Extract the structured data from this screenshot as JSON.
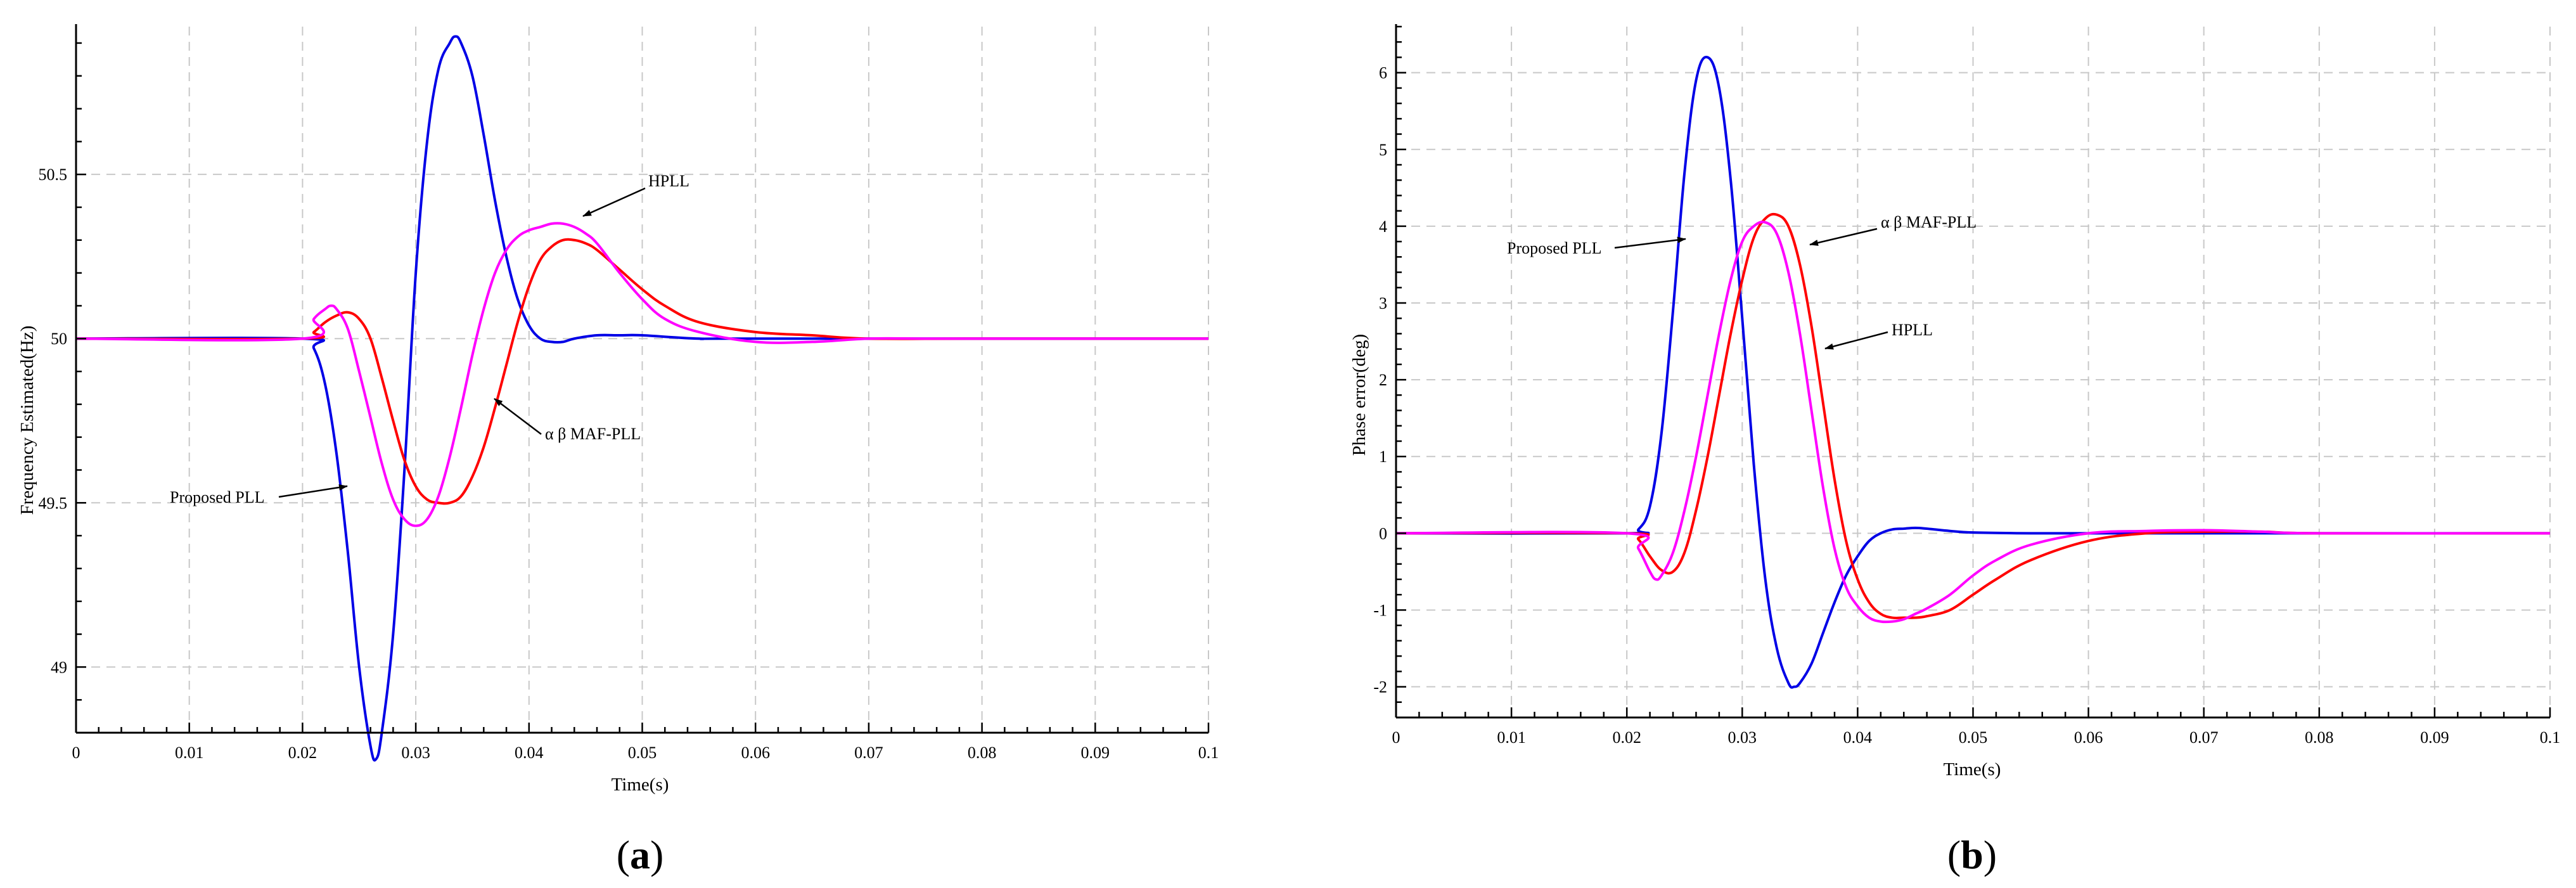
{
  "colors": {
    "proposed": "#0000e6",
    "maf": "#ff0000",
    "hpll": "#ff00ff",
    "grid": "#c8c8c8",
    "axis": "#000000"
  },
  "panels": [
    {
      "label_open": "(",
      "label_letter": "a",
      "label_close": ")"
    },
    {
      "label_open": "(",
      "label_letter": "b",
      "label_close": ")"
    }
  ],
  "chart_data": [
    {
      "type": "line",
      "xlabel": "Time(s)",
      "ylabel": "Frequency Estimated(Hz)",
      "xlim": [
        0,
        0.1
      ],
      "ylim": [
        48.8,
        50.95
      ],
      "x_ticks": [
        0,
        0.01,
        0.02,
        0.03,
        0.04,
        0.05,
        0.06,
        0.07,
        0.08,
        0.09,
        0.1
      ],
      "x_tick_labels": [
        "0",
        "0.01",
        "0.02",
        "0.03",
        "0.04",
        "0.05",
        "0.06",
        "0.07",
        "0.08",
        "0.09",
        "0.1"
      ],
      "y_ticks": [
        49,
        49.5,
        50,
        50.5
      ],
      "y_tick_labels": [
        "49",
        "49.5",
        "50",
        "50.5"
      ],
      "grid": true,
      "series": [
        {
          "name": "Proposed PLL",
          "color": "#0000e6",
          "x": [
            0,
            0.02,
            0.021,
            0.022,
            0.023,
            0.024,
            0.025,
            0.026,
            0.0265,
            0.027,
            0.028,
            0.029,
            0.03,
            0.031,
            0.032,
            0.033,
            0.0335,
            0.034,
            0.035,
            0.036,
            0.037,
            0.038,
            0.039,
            0.04,
            0.041,
            0.042,
            0.043,
            0.044,
            0.046,
            0.048,
            0.05,
            0.055,
            0.06,
            0.1
          ],
          "y": [
            50,
            50,
            49.97,
            49.86,
            49.65,
            49.35,
            49.0,
            48.76,
            48.72,
            48.8,
            49.1,
            49.6,
            50.2,
            50.6,
            50.82,
            50.9,
            50.92,
            50.9,
            50.8,
            50.62,
            50.42,
            50.25,
            50.12,
            50.04,
            50.0,
            49.99,
            49.99,
            50.0,
            50.01,
            50.01,
            50.01,
            50.0,
            50.0,
            50.0
          ]
        },
        {
          "name": "α β MAF-PLL",
          "color": "#ff0000",
          "x": [
            0,
            0.02,
            0.021,
            0.022,
            0.023,
            0.024,
            0.025,
            0.026,
            0.027,
            0.028,
            0.029,
            0.03,
            0.031,
            0.032,
            0.033,
            0.034,
            0.035,
            0.036,
            0.037,
            0.038,
            0.039,
            0.04,
            0.041,
            0.042,
            0.043,
            0.044,
            0.045,
            0.046,
            0.048,
            0.05,
            0.052,
            0.055,
            0.06,
            0.065,
            0.07,
            0.08,
            0.1
          ],
          "y": [
            50,
            50,
            50.02,
            50.05,
            50.07,
            50.08,
            50.06,
            50.0,
            49.88,
            49.75,
            49.63,
            49.55,
            49.51,
            49.5,
            49.5,
            49.52,
            49.58,
            49.67,
            49.79,
            49.92,
            50.05,
            50.16,
            50.24,
            50.28,
            50.3,
            50.3,
            50.29,
            50.27,
            50.21,
            50.15,
            50.1,
            50.05,
            50.02,
            50.01,
            50.0,
            50.0,
            50.0
          ]
        },
        {
          "name": "HPLL",
          "color": "#ff00ff",
          "x": [
            0,
            0.02,
            0.021,
            0.022,
            0.0225,
            0.023,
            0.024,
            0.025,
            0.026,
            0.027,
            0.028,
            0.029,
            0.03,
            0.031,
            0.032,
            0.033,
            0.034,
            0.035,
            0.036,
            0.037,
            0.038,
            0.039,
            0.04,
            0.041,
            0.042,
            0.043,
            0.044,
            0.045,
            0.046,
            0.048,
            0.05,
            0.052,
            0.055,
            0.06,
            0.065,
            0.07,
            0.075,
            0.08,
            0.1
          ],
          "y": [
            50,
            50,
            50.06,
            50.09,
            50.1,
            50.09,
            50.03,
            49.9,
            49.76,
            49.62,
            49.51,
            49.45,
            49.43,
            49.45,
            49.52,
            49.64,
            49.79,
            49.95,
            50.09,
            50.2,
            50.27,
            50.31,
            50.33,
            50.34,
            50.35,
            50.35,
            50.34,
            50.32,
            50.29,
            50.2,
            50.12,
            50.06,
            50.02,
            49.99,
            49.99,
            50.0,
            50.0,
            50.0,
            50.0
          ]
        }
      ],
      "annotations": [
        {
          "text": "HPLL"
        },
        {
          "text": "α β MAF-PLL"
        },
        {
          "text": "Proposed PLL"
        }
      ]
    },
    {
      "type": "line",
      "xlabel": "Time(s)",
      "ylabel": "Phase error(deg)",
      "xlim": [
        0,
        0.1
      ],
      "ylim": [
        -2.4,
        6.6
      ],
      "x_ticks": [
        0,
        0.01,
        0.02,
        0.03,
        0.04,
        0.05,
        0.06,
        0.07,
        0.08,
        0.09,
        0.1
      ],
      "x_tick_labels": [
        "0",
        "0.01",
        "0.02",
        "0.03",
        "0.04",
        "0.05",
        "0.06",
        "0.07",
        "0.08",
        "0.09",
        "0.1"
      ],
      "y_ticks": [
        -2,
        -1,
        0,
        1,
        2,
        3,
        4,
        5,
        6
      ],
      "y_tick_labels": [
        "-2",
        "-1",
        "0",
        "1",
        "2",
        "3",
        "4",
        "5",
        "6"
      ],
      "grid": true,
      "series": [
        {
          "name": "Proposed PLL",
          "color": "#0000e6",
          "x": [
            0,
            0.02,
            0.021,
            0.022,
            0.023,
            0.024,
            0.025,
            0.026,
            0.027,
            0.028,
            0.029,
            0.03,
            0.031,
            0.032,
            0.033,
            0.034,
            0.0345,
            0.035,
            0.036,
            0.037,
            0.038,
            0.039,
            0.04,
            0.041,
            0.042,
            0.043,
            0.044,
            0.045,
            0.046,
            0.048,
            0.05,
            0.055,
            0.06,
            0.1
          ],
          "y": [
            0,
            0,
            0.05,
            0.35,
            1.3,
            2.9,
            4.7,
            5.9,
            6.2,
            5.8,
            4.6,
            2.8,
            0.9,
            -0.6,
            -1.5,
            -1.95,
            -2.0,
            -1.95,
            -1.7,
            -1.3,
            -0.9,
            -0.55,
            -0.3,
            -0.1,
            0.0,
            0.05,
            0.06,
            0.07,
            0.06,
            0.03,
            0.01,
            0.0,
            0.0,
            0.0
          ]
        },
        {
          "name": "α β MAF-PLL",
          "color": "#ff0000",
          "x": [
            0,
            0.02,
            0.021,
            0.022,
            0.023,
            0.024,
            0.025,
            0.026,
            0.027,
            0.028,
            0.029,
            0.03,
            0.031,
            0.032,
            0.033,
            0.034,
            0.035,
            0.036,
            0.037,
            0.038,
            0.039,
            0.04,
            0.041,
            0.042,
            0.043,
            0.044,
            0.045,
            0.046,
            0.048,
            0.05,
            0.052,
            0.055,
            0.06,
            0.065,
            0.07,
            0.075,
            0.08,
            0.1
          ],
          "y": [
            0,
            0,
            -0.08,
            -0.3,
            -0.48,
            -0.5,
            -0.25,
            0.3,
            1.0,
            1.8,
            2.6,
            3.3,
            3.85,
            4.1,
            4.15,
            4.0,
            3.5,
            2.7,
            1.7,
            0.7,
            -0.1,
            -0.6,
            -0.9,
            -1.05,
            -1.1,
            -1.1,
            -1.1,
            -1.08,
            -1.0,
            -0.8,
            -0.6,
            -0.35,
            -0.1,
            0.0,
            0.02,
            0.02,
            0.0,
            0.0
          ]
        },
        {
          "name": "HPLL",
          "color": "#ff00ff",
          "x": [
            0,
            0.02,
            0.021,
            0.022,
            0.0225,
            0.023,
            0.024,
            0.025,
            0.026,
            0.027,
            0.028,
            0.029,
            0.03,
            0.031,
            0.032,
            0.033,
            0.034,
            0.035,
            0.036,
            0.037,
            0.038,
            0.039,
            0.04,
            0.041,
            0.042,
            0.043,
            0.044,
            0.045,
            0.046,
            0.048,
            0.05,
            0.052,
            0.055,
            0.06,
            0.065,
            0.07,
            0.075,
            0.08,
            0.1
          ],
          "y": [
            0,
            0,
            -0.2,
            -0.5,
            -0.6,
            -0.55,
            -0.25,
            0.3,
            1.0,
            1.8,
            2.6,
            3.3,
            3.8,
            4.0,
            4.05,
            3.9,
            3.4,
            2.6,
            1.6,
            0.6,
            -0.2,
            -0.7,
            -0.95,
            -1.1,
            -1.15,
            -1.15,
            -1.12,
            -1.05,
            -0.98,
            -0.8,
            -0.55,
            -0.35,
            -0.15,
            0.0,
            0.03,
            0.04,
            0.02,
            0.0,
            0.0
          ]
        }
      ],
      "annotations": [
        {
          "text": "Proposed PLL"
        },
        {
          "text": "α β MAF-PLL"
        },
        {
          "text": "HPLL"
        }
      ]
    }
  ]
}
